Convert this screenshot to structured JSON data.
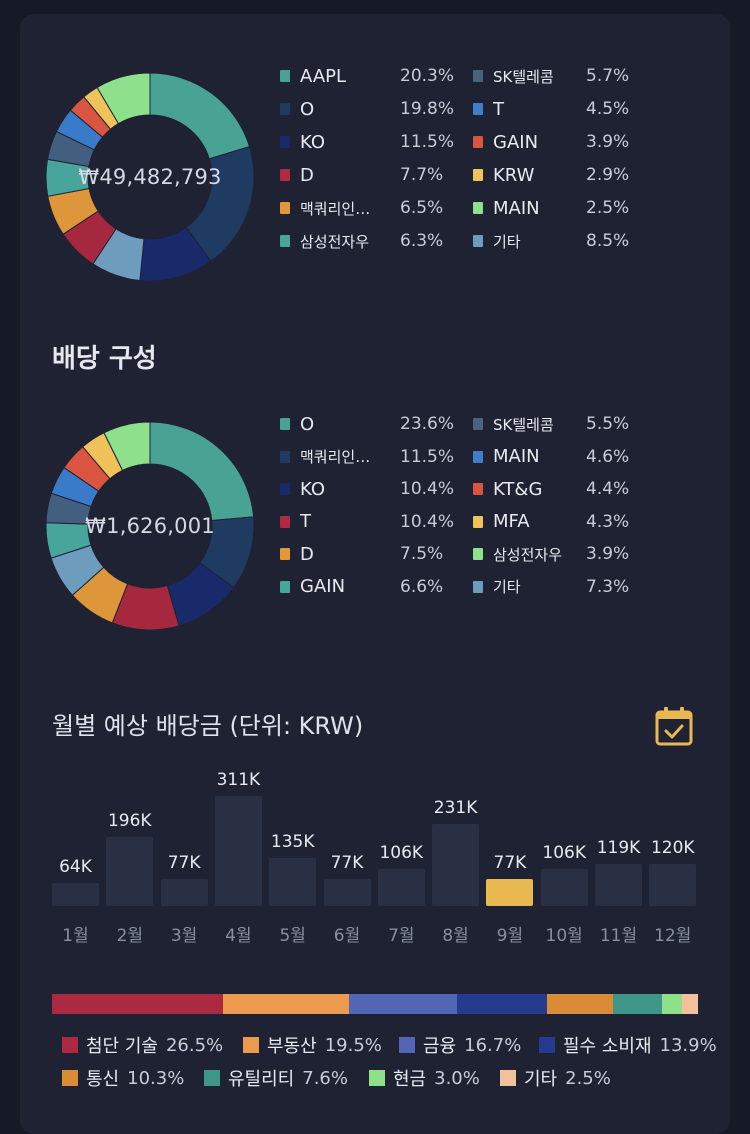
{
  "holdings": {
    "total": "₩49,482,793",
    "items": [
      {
        "name": "AAPL",
        "pct": "20.3%",
        "value": 20.3,
        "color": "#48a394"
      },
      {
        "name": "O",
        "pct": "19.8%",
        "value": 19.8,
        "color": "#1f3b62"
      },
      {
        "name": "KO",
        "pct": "11.5%",
        "value": 11.5,
        "color": "#182a6a"
      },
      {
        "name": "D",
        "pct": "7.7%",
        "value": 7.7,
        "color": "#6d9cbd"
      },
      {
        "name": "맥쿼리인…",
        "pct": "6.5%",
        "value": 6.5,
        "color": "#a5283f"
      },
      {
        "name": "삼성전자우",
        "pct": "6.3%",
        "value": 6.3,
        "color": "#de963a"
      },
      {
        "name": "SK텔레콤",
        "pct": "5.7%",
        "value": 5.7,
        "color": "#47a59b"
      },
      {
        "name": "T",
        "pct": "4.5%",
        "value": 4.5,
        "color": "#435f80"
      },
      {
        "name": "GAIN",
        "pct": "3.9%",
        "value": 3.9,
        "color": "#3a7bc9"
      },
      {
        "name": "KRW",
        "pct": "2.9%",
        "value": 2.9,
        "color": "#d9553f"
      },
      {
        "name": "MAIN",
        "pct": "2.5%",
        "value": 2.5,
        "color": "#efc25a"
      },
      {
        "name": "기타",
        "pct": "8.5%",
        "value": 8.5,
        "color": "#8ee08a"
      }
    ],
    "legend_colors": [
      "#48a394",
      "#1f3b62",
      "#182a6a",
      "#b02a44",
      "#e5963a",
      "#47a59b",
      "#4a627d",
      "#3f7fc9",
      "#d9553f",
      "#efc25a",
      "#8ee08a",
      "#6d9cbd"
    ]
  },
  "dividend_section_title": "배당 구성",
  "dividends": {
    "total": "₩1,626,001",
    "items": [
      {
        "name": "O",
        "pct": "23.6%",
        "value": 23.6,
        "color": "#48a394"
      },
      {
        "name": "맥쿼리인…",
        "pct": "11.5%",
        "value": 11.5,
        "color": "#1f3b62"
      },
      {
        "name": "KO",
        "pct": "10.4%",
        "value": 10.4,
        "color": "#182a6a"
      },
      {
        "name": "T",
        "pct": "10.4%",
        "value": 10.4,
        "color": "#a5283f"
      },
      {
        "name": "D",
        "pct": "7.5%",
        "value": 7.5,
        "color": "#de963a"
      },
      {
        "name": "GAIN",
        "pct": "6.6%",
        "value": 6.6,
        "color": "#6d9cbd"
      },
      {
        "name": "SK텔레콤",
        "pct": "5.5%",
        "value": 5.5,
        "color": "#47a59b"
      },
      {
        "name": "MAIN",
        "pct": "4.6%",
        "value": 4.6,
        "color": "#435f80"
      },
      {
        "name": "KT&G",
        "pct": "4.4%",
        "value": 4.4,
        "color": "#3a7bc9"
      },
      {
        "name": "MFA",
        "pct": "4.3%",
        "value": 4.3,
        "color": "#d9553f"
      },
      {
        "name": "삼성전자우",
        "pct": "3.9%",
        "value": 3.9,
        "color": "#efc25a"
      },
      {
        "name": "기타",
        "pct": "7.3%",
        "value": 7.3,
        "color": "#8ee08a"
      }
    ],
    "legend_colors": [
      "#48a394",
      "#1f3b62",
      "#182a6a",
      "#b02a44",
      "#e5963a",
      "#47a59b",
      "#4a627d",
      "#3f7fc9",
      "#d9553f",
      "#efc25a",
      "#8ee08a",
      "#6d9cbd"
    ]
  },
  "monthly_title": "월별 예상 배당금 (단위: KRW)",
  "calendar_icon": "calendar-check-icon",
  "chart_data": {
    "type": "bar",
    "categories": [
      "1월",
      "2월",
      "3월",
      "4월",
      "5월",
      "6월",
      "7월",
      "8월",
      "9월",
      "10월",
      "11월",
      "12월"
    ],
    "values": [
      64,
      196,
      77,
      311,
      135,
      77,
      106,
      231,
      77,
      106,
      119,
      120
    ],
    "labels": [
      "64K",
      "196K",
      "77K",
      "311K",
      "135K",
      "77K",
      "106K",
      "231K",
      "77K",
      "106K",
      "119K",
      "120K"
    ],
    "highlight_index": 8,
    "title": "월별 예상 배당금 (단위: KRW)"
  },
  "sectors": [
    {
      "name": "첨단 기술",
      "pct": "26.5%",
      "value": 26.5,
      "color": "#ab2a42"
    },
    {
      "name": "부동산",
      "pct": "19.5%",
      "value": 19.5,
      "color": "#ec9a4d"
    },
    {
      "name": "금융",
      "pct": "16.7%",
      "value": 16.7,
      "color": "#5366b5"
    },
    {
      "name": "필수 소비재",
      "pct": "13.9%",
      "value": 13.9,
      "color": "#263a8e"
    },
    {
      "name": "통신",
      "pct": "10.3%",
      "value": 10.3,
      "color": "#d98b35"
    },
    {
      "name": "유틸리티",
      "pct": "7.6%",
      "value": 7.6,
      "color": "#3e9688"
    },
    {
      "name": "현금",
      "pct": "3.0%",
      "value": 3.0,
      "color": "#8fe08b"
    },
    {
      "name": "기타",
      "pct": "2.5%",
      "value": 2.5,
      "color": "#f2c19b"
    }
  ]
}
